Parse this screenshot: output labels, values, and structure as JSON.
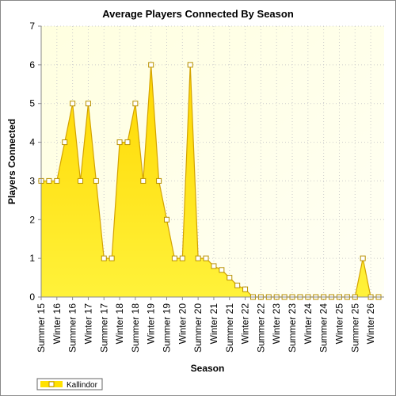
{
  "chart_data": {
    "type": "area",
    "title": "Average Players Connected By Season",
    "x_label": "Season",
    "y_label": "Players Connected",
    "categories": [
      "Summer 15",
      null,
      "Winter 16",
      null,
      "Summer 16",
      null,
      "Winter 17",
      null,
      "Summer 17",
      null,
      "Winter 18",
      null,
      "Summer 18",
      null,
      "Winter 19",
      null,
      "Summer 19",
      null,
      "Winter 20",
      null,
      "Summer 20",
      null,
      "Winter 21",
      null,
      "Summer 21",
      null,
      "Winter 22",
      null,
      "Summer 22",
      null,
      "Winter 23",
      null,
      "Summer 23",
      null,
      "Winter 24",
      null,
      "Summer 24",
      null,
      "Winter 25",
      null,
      "Summer 25",
      null,
      "Winter 26",
      null
    ],
    "series": [
      {
        "name": "Kallindor",
        "color": "#ffe100",
        "values": [
          3,
          3,
          3,
          4,
          5,
          3,
          5,
          3,
          1,
          1,
          4,
          4,
          5,
          3,
          6,
          3,
          2,
          1,
          1,
          6,
          1,
          1,
          0.8,
          0.7,
          0.5,
          0.3,
          0.2,
          0,
          0,
          0,
          0,
          0,
          0,
          0,
          0,
          0,
          0,
          0,
          0,
          0,
          0,
          1,
          0,
          0
        ]
      }
    ],
    "ylim": [
      0,
      7
    ],
    "yticks": [
      0,
      1,
      2,
      3,
      4,
      5,
      6,
      7
    ],
    "grid": true,
    "legend": "bottom-left"
  }
}
